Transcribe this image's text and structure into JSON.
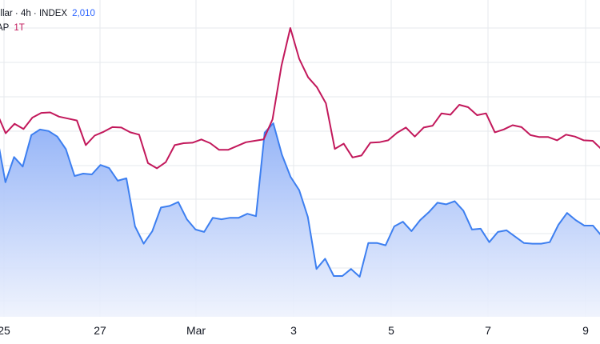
{
  "legend": {
    "series1_title": "ollar · 4h · INDEX",
    "series1_value": "2,010",
    "series2_title": "AP",
    "series2_value": "1T"
  },
  "colors": {
    "background": "#ffffff",
    "grid": "#e6e8ec",
    "blue_line": "#3d7ff0",
    "blue_fill_top": "#8fb0f7",
    "blue_fill_bottom": "#eef2fd",
    "pink_line": "#c2185b",
    "text": "#131722"
  },
  "chart_data": {
    "type": "line",
    "x_tick_labels": [
      "25",
      "27",
      "Mar",
      "3",
      "5",
      "7",
      "9"
    ],
    "grid": true,
    "series": [
      {
        "values": [
          226,
          183,
          203,
          192,
          216,
          226,
          227,
          218,
          214,
          210,
          158,
          178,
          186,
          196,
          195,
          185,
          180,
          120,
          109,
          122,
          158,
          162,
          163,
          170,
          162,
          148,
          148,
          156,
          164,
          167,
          170,
          212,
          325,
          405,
          340,
          301,
          280,
          246,
          150,
          161,
          132,
          136,
          163,
          164,
          168,
          184,
          195,
          176,
          195,
          199,
          225,
          222,
          243,
          238,
          221,
          225,
          185,
          191,
          200,
          196,
          179,
          175,
          175,
          168,
          180,
          176,
          168,
          167,
          149
        ]
      },
      {
        "values": [
          180,
          120,
          152,
          140,
          180,
          187,
          185,
          178,
          162,
          128,
          131,
          130,
          142,
          138,
          122,
          125,
          64,
          42,
          58,
          88,
          90,
          95,
          73,
          60,
          57,
          75,
          73,
          75,
          75,
          80,
          77,
          183,
          195,
          155,
          127,
          110,
          76,
          10,
          23,
          1,
          1,
          10,
          0,
          43,
          43,
          40,
          64,
          70,
          58,
          72,
          82,
          94,
          92,
          96,
          84,
          60,
          61,
          44,
          57,
          59,
          51,
          43,
          42,
          42,
          44,
          66,
          81,
          72,
          65,
          65,
          52
        ]
      }
    ]
  }
}
